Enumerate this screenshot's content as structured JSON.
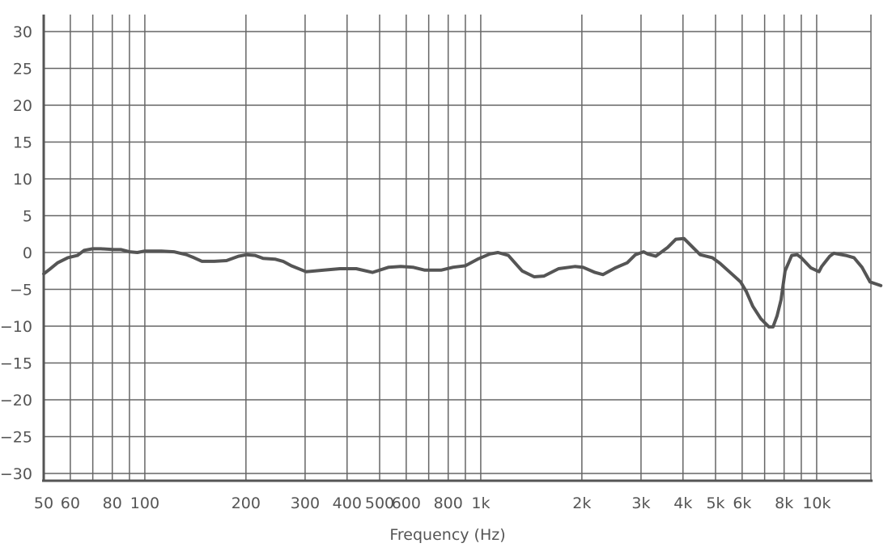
{
  "chart_data": {
    "type": "line",
    "title": "",
    "xlabel": "Frequency (Hz)",
    "ylabel": "",
    "xscale": "log",
    "xlim": [
      50,
      14500
    ],
    "ylim": [
      -30,
      30
    ],
    "grid": true,
    "line_color": "#555555",
    "grid_color": "#666666",
    "y_ticks": [
      30,
      25,
      20,
      15,
      10,
      5,
      0,
      -5,
      -10,
      -15,
      -20,
      -25,
      -30
    ],
    "y_tick_labels": [
      "30",
      "25",
      "20",
      "15",
      "10",
      "5",
      "0",
      "−5",
      "−10",
      "−15",
      "−20",
      "−25",
      "−30"
    ],
    "x_gridlines": [
      50,
      60,
      70,
      80,
      90,
      100,
      200,
      300,
      400,
      500,
      600,
      700,
      800,
      900,
      1000,
      2000,
      3000,
      4000,
      5000,
      6000,
      7000,
      8000,
      9000,
      10000
    ],
    "x_ticks": [
      50,
      60,
      80,
      100,
      200,
      300,
      400,
      500,
      600,
      800,
      1000,
      2000,
      3000,
      4000,
      5000,
      6000,
      8000,
      10000
    ],
    "x_tick_labels": [
      "50",
      "60",
      "80",
      "100",
      "200",
      "300",
      "400",
      "500",
      "600",
      "800",
      "1k",
      "2k",
      "3k",
      "4k",
      "5k",
      "6k",
      "8k",
      "10k"
    ],
    "series": [
      {
        "x": [
          50,
          52,
          55,
          59,
          63,
          66,
          70,
          74,
          81,
          85,
          90,
          95,
          100,
          112,
          122,
          133,
          140,
          148,
          161,
          175,
          190,
          201,
          213,
          225,
          244,
          258,
          273,
          302,
          341,
          381,
          426,
          476,
          532,
          578,
          628,
          682,
          762,
          828,
          900,
          979,
          1064,
          1125,
          1208,
          1328,
          1442,
          1542,
          1705,
          1905,
          2014,
          2188,
          2312,
          2512,
          2730,
          2886,
          3053,
          3139,
          3318,
          3604,
          3810,
          4027,
          4256,
          4499,
          4890,
          5167,
          5618,
          5938,
          6175,
          6455,
          6823,
          7212,
          7416,
          7622,
          7835,
          8054,
          8428,
          8750,
          8995,
          9616,
          10163,
          10350,
          10940,
          11245,
          12216,
          12910,
          13645,
          14420,
          15525
        ],
        "y": [
          -2.9,
          -2.3,
          -1.4,
          -0.7,
          -0.4,
          0.3,
          0.5,
          0.5,
          0.4,
          0.4,
          0.1,
          0,
          0.2,
          0.2,
          0.1,
          -0.3,
          -0.7,
          -1.2,
          -1.2,
          -1.1,
          -0.5,
          -0.3,
          -0.4,
          -0.8,
          -0.9,
          -1.2,
          -1.8,
          -2.6,
          -2.4,
          -2.2,
          -2.2,
          -2.7,
          -2.0,
          -1.9,
          -2.0,
          -2.4,
          -2.4,
          -2.0,
          -1.8,
          -0.9,
          -0.2,
          0,
          -0.4,
          -2.5,
          -3.3,
          -3.2,
          -2.2,
          -1.9,
          -2.0,
          -2.7,
          -3.0,
          -2.1,
          -1.4,
          -0.3,
          0.1,
          -0.2,
          -0.5,
          0.7,
          1.8,
          1.9,
          0.8,
          -0.3,
          -0.7,
          -1.5,
          -3.0,
          -4.0,
          -5.3,
          -7.3,
          -9.0,
          -10.1,
          -10.1,
          -8.6,
          -6.4,
          -2.5,
          -0.4,
          -0.3,
          -0.7,
          -2.1,
          -2.6,
          -1.9,
          -0.5,
          -0.1,
          -0.4,
          -0.7,
          -2.0,
          -4.0,
          -4.5
        ]
      }
    ]
  }
}
